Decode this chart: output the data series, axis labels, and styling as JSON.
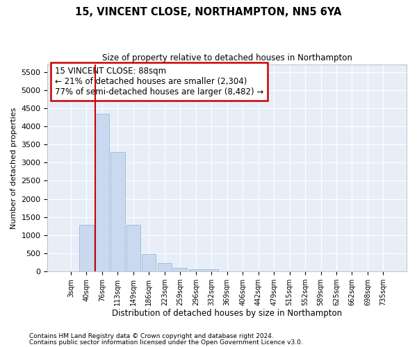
{
  "title": "15, VINCENT CLOSE, NORTHAMPTON, NN5 6YA",
  "subtitle": "Size of property relative to detached houses in Northampton",
  "xlabel": "Distribution of detached houses by size in Northampton",
  "ylabel": "Number of detached properties",
  "footnote1": "Contains HM Land Registry data © Crown copyright and database right 2024.",
  "footnote2": "Contains public sector information licensed under the Open Government Licence v3.0.",
  "bar_facecolor": "#c8d9f0",
  "bar_edgecolor": "#9ab8d8",
  "vline_color": "#cc0000",
  "annotation_box_edgecolor": "#cc0000",
  "plot_bgcolor": "#e8eef8",
  "grid_color": "#d0d8e8",
  "categories": [
    "3sqm",
    "40sqm",
    "76sqm",
    "113sqm",
    "149sqm",
    "186sqm",
    "223sqm",
    "259sqm",
    "296sqm",
    "332sqm",
    "369sqm",
    "406sqm",
    "442sqm",
    "479sqm",
    "515sqm",
    "552sqm",
    "589sqm",
    "625sqm",
    "662sqm",
    "698sqm",
    "735sqm"
  ],
  "values": [
    0,
    1280,
    4350,
    3300,
    1290,
    480,
    240,
    90,
    60,
    50,
    0,
    0,
    0,
    0,
    0,
    0,
    0,
    0,
    0,
    0,
    0
  ],
  "ylim": [
    0,
    5700
  ],
  "yticks": [
    0,
    500,
    1000,
    1500,
    2000,
    2500,
    3000,
    3500,
    4000,
    4500,
    5000,
    5500
  ],
  "vline_bin_index": 2,
  "annotation_line1": "15 VINCENT CLOSE: 88sqm",
  "annotation_line2": "← 21% of detached houses are smaller (2,304)",
  "annotation_line3": "77% of semi-detached houses are larger (8,482) →"
}
